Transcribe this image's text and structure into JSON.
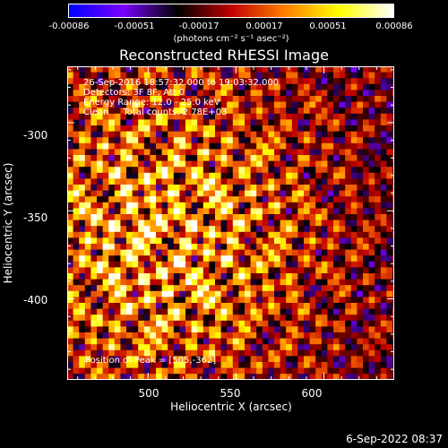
{
  "colorbar": {
    "tick_labels": [
      "-0.00086",
      "-0.00051",
      "-0.00017",
      "0.00017",
      "0.00051",
      "0.00086"
    ],
    "tick_values": [
      -0.00086,
      -0.00051,
      -0.00017,
      0.00017,
      0.00051,
      0.00086
    ],
    "range": [
      -0.00086,
      0.00086
    ],
    "units_label": "(photons cm⁻² s⁻¹ asec⁻²)",
    "colormap": [
      "#0000ff",
      "#7a00ff",
      "#000000",
      "#c00000",
      "#ff8000",
      "#ffff00",
      "#ffffff"
    ]
  },
  "chart_data": {
    "type": "heatmap",
    "title": "Reconstructed RHESSI Image",
    "xlabel": "Heliocentric X (arcsec)",
    "ylabel": "Heliocentric Y (arcsec)",
    "xlim": [
      454,
      640
    ],
    "ylim": [
      -446,
      -268
    ],
    "x_ticks": [
      500,
      550,
      600
    ],
    "y_ticks": [
      -300,
      -350,
      -400
    ],
    "annotations": [
      "26-Sep-2016 18:57:32.000 to 19:03:32.000",
      "Detectors: 3F 8F, Att 0",
      "Energy Range: 12.0 - 25.0 keV",
      "Clean     Total counts: 2.78E+03"
    ],
    "peak_annotation": "Position of Peak = [505,-362]",
    "peak_position": [
      505,
      -362
    ],
    "grid": false
  },
  "footer": {
    "timestamp": "6-Sep-2022 08:37"
  }
}
